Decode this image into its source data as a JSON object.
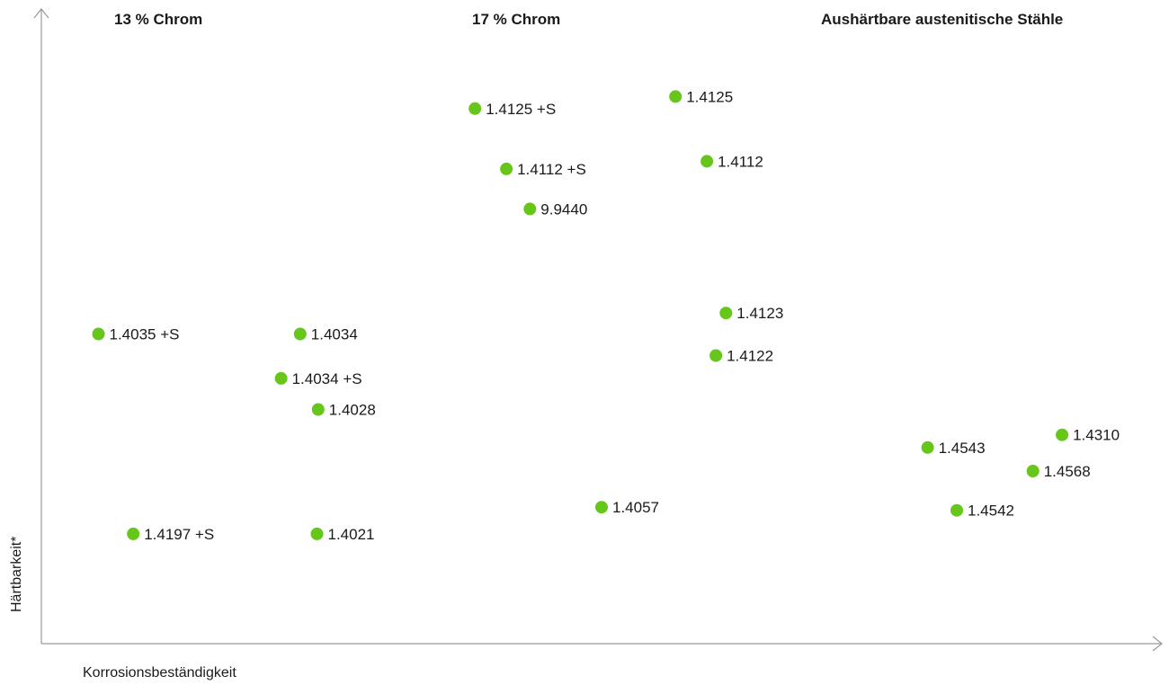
{
  "groups": [
    {
      "label": "13 % Chrom"
    },
    {
      "label": "17 % Chrom"
    },
    {
      "label": "Aushärtbare austenitische Stähle"
    }
  ],
  "chart_data": {
    "type": "scatter",
    "xlabel": "Korrosionsbeständigkeit",
    "ylabel": "Härtbarkeit*",
    "xlim": [
      0,
      100
    ],
    "ylim": [
      0,
      100
    ],
    "grid": false,
    "marker_color": "#66c619",
    "points": [
      {
        "label": "1.4125 +S",
        "x": 38.7,
        "y": 84.3
      },
      {
        "label": "1.4125",
        "x": 56.6,
        "y": 86.2
      },
      {
        "label": "1.4112",
        "x": 59.4,
        "y": 76.0
      },
      {
        "label": "1.4112 +S",
        "x": 41.5,
        "y": 74.8
      },
      {
        "label": "9.9440",
        "x": 43.6,
        "y": 68.5
      },
      {
        "label": "1.4123",
        "x": 61.1,
        "y": 52.1
      },
      {
        "label": "1.4122",
        "x": 60.2,
        "y": 45.4
      },
      {
        "label": "1.4035 +S",
        "x": 5.1,
        "y": 48.8
      },
      {
        "label": "1.4034",
        "x": 23.1,
        "y": 48.8
      },
      {
        "label": "1.4034 +S",
        "x": 21.4,
        "y": 41.8
      },
      {
        "label": "1.4028",
        "x": 24.7,
        "y": 36.9
      },
      {
        "label": "1.4310",
        "x": 91.1,
        "y": 32.9
      },
      {
        "label": "1.4543",
        "x": 79.1,
        "y": 30.9
      },
      {
        "label": "1.4568",
        "x": 88.5,
        "y": 27.2
      },
      {
        "label": "1.4057",
        "x": 50.0,
        "y": 21.5
      },
      {
        "label": "1.4542",
        "x": 81.7,
        "y": 21.0
      },
      {
        "label": "1.4197 +S",
        "x": 8.2,
        "y": 17.3
      },
      {
        "label": "1.4021",
        "x": 24.6,
        "y": 17.3
      }
    ]
  }
}
